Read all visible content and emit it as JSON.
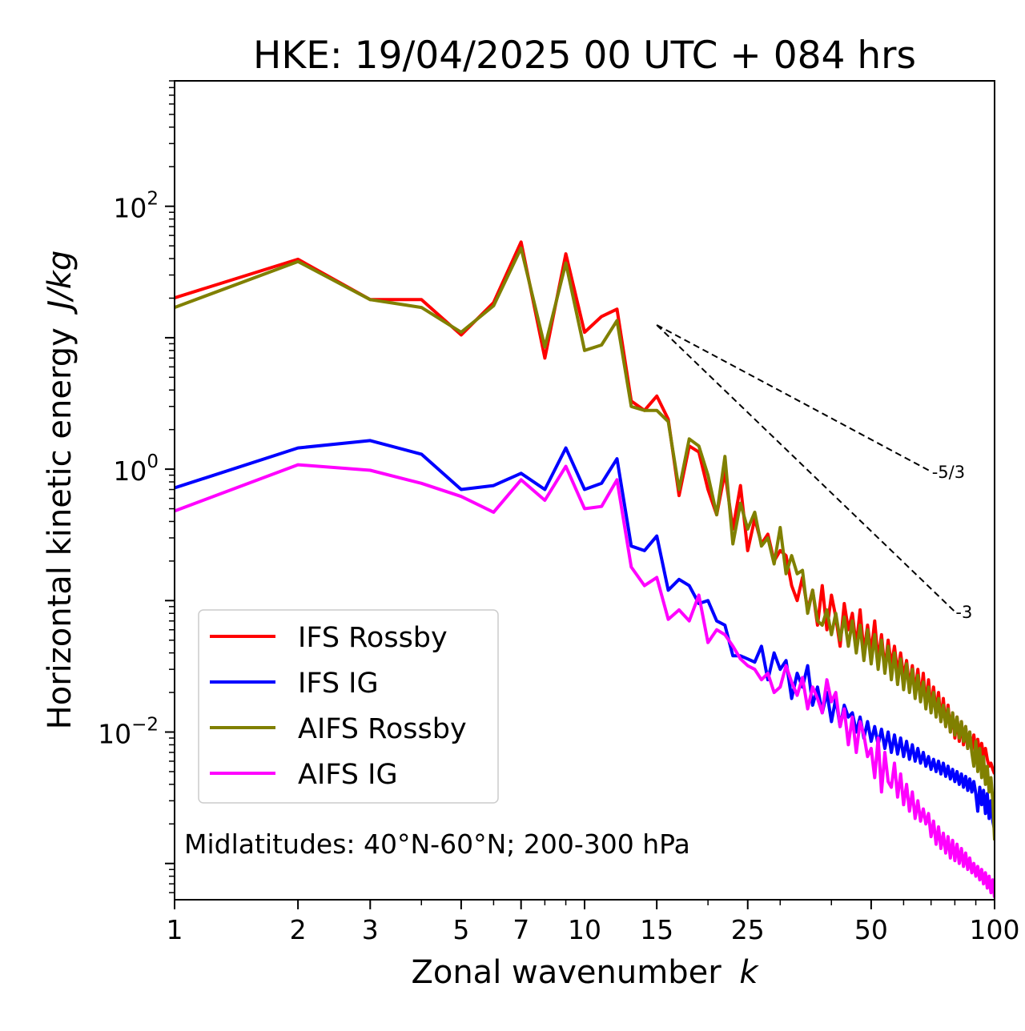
{
  "chart_data": {
    "type": "line",
    "title": "HKE: 19/04/2025 00 UTC + 084 hrs",
    "xlabel": "Zonal wavenumber",
    "xlabel_var": "k",
    "ylabel": "Horizontal kinetic energy",
    "ylabel_unit": "J/kg",
    "xscale": "log",
    "yscale": "log",
    "xlim": [
      1,
      100
    ],
    "ylim": [
      0.00053,
      900
    ],
    "xticks": [
      {
        "value": 1,
        "label": "1"
      },
      {
        "value": 2,
        "label": "2"
      },
      {
        "value": 3,
        "label": "3"
      },
      {
        "value": 5,
        "label": "5"
      },
      {
        "value": 7,
        "label": "7"
      },
      {
        "value": 10,
        "label": "10"
      },
      {
        "value": 15,
        "label": "15"
      },
      {
        "value": 25,
        "label": "25"
      },
      {
        "value": 50,
        "label": "50"
      },
      {
        "value": 100,
        "label": "100"
      }
    ],
    "yticks": [
      {
        "value": 0.01,
        "base": "10",
        "exp": "−2"
      },
      {
        "value": 1,
        "base": "10",
        "exp": "0"
      },
      {
        "value": 100,
        "base": "10",
        "exp": "2"
      }
    ],
    "grid": false,
    "legend_position": "lower-left",
    "annotation": "Midlatitudes: 40°N-60°N; 200-300 hPa",
    "reference_lines": [
      {
        "label": "-5/3",
        "slope": -1.6667,
        "x_start": 15,
        "x_end": 70,
        "y_start": 12.5
      },
      {
        "label": "-3",
        "slope": -3,
        "x_start": 15,
        "x_end": 80,
        "y_start": 12.5
      }
    ],
    "series": [
      {
        "name": "IFS Rossby",
        "color": "#ff0000",
        "x": [
          1,
          2,
          3,
          4,
          5,
          6,
          7,
          8,
          9,
          10,
          11,
          12,
          13,
          14,
          15,
          16,
          17,
          18,
          19,
          20,
          21,
          22,
          23,
          24,
          25,
          26,
          27,
          28,
          29,
          30,
          31,
          32,
          33,
          34,
          35,
          36,
          37,
          38,
          39,
          40,
          41,
          42,
          43,
          44,
          45,
          46,
          47,
          48,
          49,
          50,
          51,
          52,
          53,
          54,
          55,
          56,
          57,
          58,
          59,
          60,
          61,
          62,
          63,
          64,
          65,
          66,
          67,
          68,
          69,
          70,
          71,
          72,
          73,
          74,
          75,
          76,
          77,
          78,
          79,
          80,
          81,
          82,
          83,
          84,
          85,
          86,
          87,
          88,
          89,
          90,
          91,
          92,
          93,
          94,
          95,
          96,
          97,
          98,
          99,
          100
        ],
        "y": [
          20.1,
          39.5,
          19.5,
          19.5,
          10.5,
          18.5,
          53.5,
          7.0,
          43.5,
          11.0,
          14.5,
          16.5,
          3.3,
          2.8,
          3.6,
          2.4,
          0.63,
          1.5,
          1.35,
          0.7,
          0.45,
          0.95,
          0.35,
          0.75,
          0.24,
          0.42,
          0.27,
          0.32,
          0.2,
          0.24,
          0.22,
          0.13,
          0.1,
          0.15,
          0.085,
          0.12,
          0.065,
          0.13,
          0.06,
          0.11,
          0.075,
          0.045,
          0.095,
          0.06,
          0.08,
          0.045,
          0.085,
          0.04,
          0.065,
          0.04,
          0.07,
          0.035,
          0.055,
          0.03,
          0.05,
          0.032,
          0.045,
          0.028,
          0.04,
          0.026,
          0.035,
          0.022,
          0.032,
          0.02,
          0.03,
          0.018,
          0.028,
          0.016,
          0.025,
          0.015,
          0.022,
          0.014,
          0.02,
          0.012,
          0.018,
          0.011,
          0.016,
          0.01,
          0.014,
          0.009,
          0.013,
          0.0085,
          0.012,
          0.008,
          0.011,
          0.0075,
          0.01,
          0.0072,
          0.0095,
          0.007,
          0.0088,
          0.0068,
          0.0082,
          0.0065,
          0.0075,
          0.0062,
          0.0055,
          0.0058,
          0.0052,
          0.0048
        ]
      },
      {
        "name": "IFS IG",
        "color": "#0000ff",
        "x": [
          1,
          2,
          3,
          4,
          5,
          6,
          7,
          8,
          9,
          10,
          11,
          12,
          13,
          14,
          15,
          16,
          17,
          18,
          19,
          20,
          21,
          22,
          23,
          24,
          25,
          26,
          27,
          28,
          29,
          30,
          31,
          32,
          33,
          34,
          35,
          36,
          37,
          38,
          39,
          40,
          41,
          42,
          43,
          44,
          45,
          46,
          47,
          48,
          49,
          50,
          51,
          52,
          53,
          54,
          55,
          56,
          57,
          58,
          59,
          60,
          61,
          62,
          63,
          64,
          65,
          66,
          67,
          68,
          69,
          70,
          71,
          72,
          73,
          74,
          75,
          76,
          77,
          78,
          79,
          80,
          81,
          82,
          83,
          84,
          85,
          86,
          87,
          88,
          89,
          90,
          91,
          92,
          93,
          94,
          95,
          96,
          97,
          98,
          99,
          100
        ],
        "y": [
          0.72,
          1.45,
          1.65,
          1.3,
          0.7,
          0.75,
          0.93,
          0.7,
          1.45,
          0.7,
          0.78,
          1.2,
          0.26,
          0.24,
          0.31,
          0.12,
          0.145,
          0.13,
          0.095,
          0.1,
          0.07,
          0.065,
          0.038,
          0.038,
          0.036,
          0.034,
          0.045,
          0.025,
          0.04,
          0.03,
          0.035,
          0.018,
          0.028,
          0.022,
          0.032,
          0.016,
          0.022,
          0.014,
          0.02,
          0.012,
          0.018,
          0.011,
          0.016,
          0.013,
          0.014,
          0.01,
          0.013,
          0.009,
          0.012,
          0.0085,
          0.011,
          0.008,
          0.0105,
          0.0075,
          0.01,
          0.007,
          0.0095,
          0.0068,
          0.009,
          0.0065,
          0.0085,
          0.0062,
          0.008,
          0.006,
          0.0075,
          0.0058,
          0.007,
          0.0055,
          0.0065,
          0.0052,
          0.0062,
          0.005,
          0.006,
          0.0048,
          0.0058,
          0.0046,
          0.0055,
          0.0044,
          0.0052,
          0.0042,
          0.005,
          0.004,
          0.0048,
          0.0038,
          0.0046,
          0.0036,
          0.0044,
          0.0035,
          0.0042,
          0.0034,
          0.0025,
          0.0038,
          0.0028,
          0.0036,
          0.0024,
          0.0034,
          0.0022,
          0.003,
          0.0021,
          0.0018
        ]
      },
      {
        "name": "AIFS Rossby",
        "color": "#808000",
        "x": [
          1,
          2,
          3,
          4,
          5,
          6,
          7,
          8,
          9,
          10,
          11,
          12,
          13,
          14,
          15,
          16,
          17,
          18,
          19,
          20,
          21,
          22,
          23,
          24,
          25,
          26,
          27,
          28,
          29,
          30,
          31,
          32,
          33,
          34,
          35,
          36,
          37,
          38,
          39,
          40,
          41,
          42,
          43,
          44,
          45,
          46,
          47,
          48,
          49,
          50,
          51,
          52,
          53,
          54,
          55,
          56,
          57,
          58,
          59,
          60,
          61,
          62,
          63,
          64,
          65,
          66,
          67,
          68,
          69,
          70,
          71,
          72,
          73,
          74,
          75,
          76,
          77,
          78,
          79,
          80,
          81,
          82,
          83,
          84,
          85,
          86,
          87,
          88,
          89,
          90,
          91,
          92,
          93,
          94,
          95,
          96,
          97,
          98,
          99,
          100
        ],
        "y": [
          17.0,
          38.0,
          19.5,
          17.0,
          11.0,
          17.5,
          48.0,
          8.5,
          37.0,
          8.0,
          8.8,
          13.5,
          3.0,
          2.8,
          2.8,
          2.3,
          0.7,
          1.7,
          1.5,
          0.9,
          0.45,
          1.25,
          0.27,
          0.55,
          0.35,
          0.47,
          0.26,
          0.3,
          0.19,
          0.36,
          0.16,
          0.22,
          0.16,
          0.17,
          0.08,
          0.12,
          0.07,
          0.065,
          0.085,
          0.055,
          0.08,
          0.05,
          0.075,
          0.045,
          0.07,
          0.04,
          0.065,
          0.035,
          0.06,
          0.033,
          0.055,
          0.03,
          0.05,
          0.028,
          0.045,
          0.025,
          0.04,
          0.023,
          0.036,
          0.021,
          0.033,
          0.02,
          0.03,
          0.018,
          0.027,
          0.017,
          0.024,
          0.015,
          0.022,
          0.014,
          0.02,
          0.013,
          0.018,
          0.012,
          0.016,
          0.011,
          0.015,
          0.01,
          0.014,
          0.0095,
          0.013,
          0.009,
          0.012,
          0.0085,
          0.011,
          0.0075,
          0.01,
          0.007,
          0.0055,
          0.0085,
          0.005,
          0.0075,
          0.0045,
          0.0065,
          0.004,
          0.0055,
          0.0035,
          0.0045,
          0.003,
          0.0015
        ]
      },
      {
        "name": "AIFS IG",
        "color": "#ff00ff",
        "x": [
          1,
          2,
          3,
          4,
          5,
          6,
          7,
          8,
          9,
          10,
          11,
          12,
          13,
          14,
          15,
          16,
          17,
          18,
          19,
          20,
          21,
          22,
          23,
          24,
          25,
          26,
          27,
          28,
          29,
          30,
          31,
          32,
          33,
          34,
          35,
          36,
          37,
          38,
          39,
          40,
          41,
          42,
          43,
          44,
          45,
          46,
          47,
          48,
          49,
          50,
          51,
          52,
          53,
          54,
          55,
          56,
          57,
          58,
          59,
          60,
          61,
          62,
          63,
          64,
          65,
          66,
          67,
          68,
          69,
          70,
          71,
          72,
          73,
          74,
          75,
          76,
          77,
          78,
          79,
          80,
          81,
          82,
          83,
          84,
          85,
          86,
          87,
          88,
          89,
          90,
          91,
          92,
          93,
          94,
          95,
          96,
          97,
          98,
          99,
          100
        ],
        "y": [
          0.48,
          1.08,
          0.98,
          0.78,
          0.62,
          0.47,
          0.83,
          0.58,
          1.05,
          0.5,
          0.52,
          0.83,
          0.18,
          0.13,
          0.15,
          0.072,
          0.085,
          0.07,
          0.11,
          0.048,
          0.06,
          0.055,
          0.045,
          0.036,
          0.032,
          0.03,
          0.025,
          0.028,
          0.02,
          0.022,
          0.032,
          0.024,
          0.019,
          0.026,
          0.015,
          0.022,
          0.018,
          0.014,
          0.025,
          0.017,
          0.02,
          0.011,
          0.015,
          0.008,
          0.013,
          0.007,
          0.012,
          0.0095,
          0.0065,
          0.0075,
          0.0045,
          0.009,
          0.0035,
          0.007,
          0.0042,
          0.0038,
          0.0058,
          0.0032,
          0.0048,
          0.0028,
          0.004,
          0.0025,
          0.0035,
          0.0022,
          0.003,
          0.0021,
          0.0026,
          0.002,
          0.0024,
          0.0016,
          0.0021,
          0.0014,
          0.0019,
          0.0013,
          0.0017,
          0.0012,
          0.0016,
          0.0011,
          0.0015,
          0.00105,
          0.0014,
          0.001,
          0.0013,
          0.00095,
          0.0012,
          0.0009,
          0.0011,
          0.00085,
          0.001,
          0.0008,
          0.00095,
          0.00075,
          0.0009,
          0.0007,
          0.00085,
          0.00065,
          0.0008,
          0.0006,
          0.00075,
          0.00055
        ]
      }
    ]
  }
}
